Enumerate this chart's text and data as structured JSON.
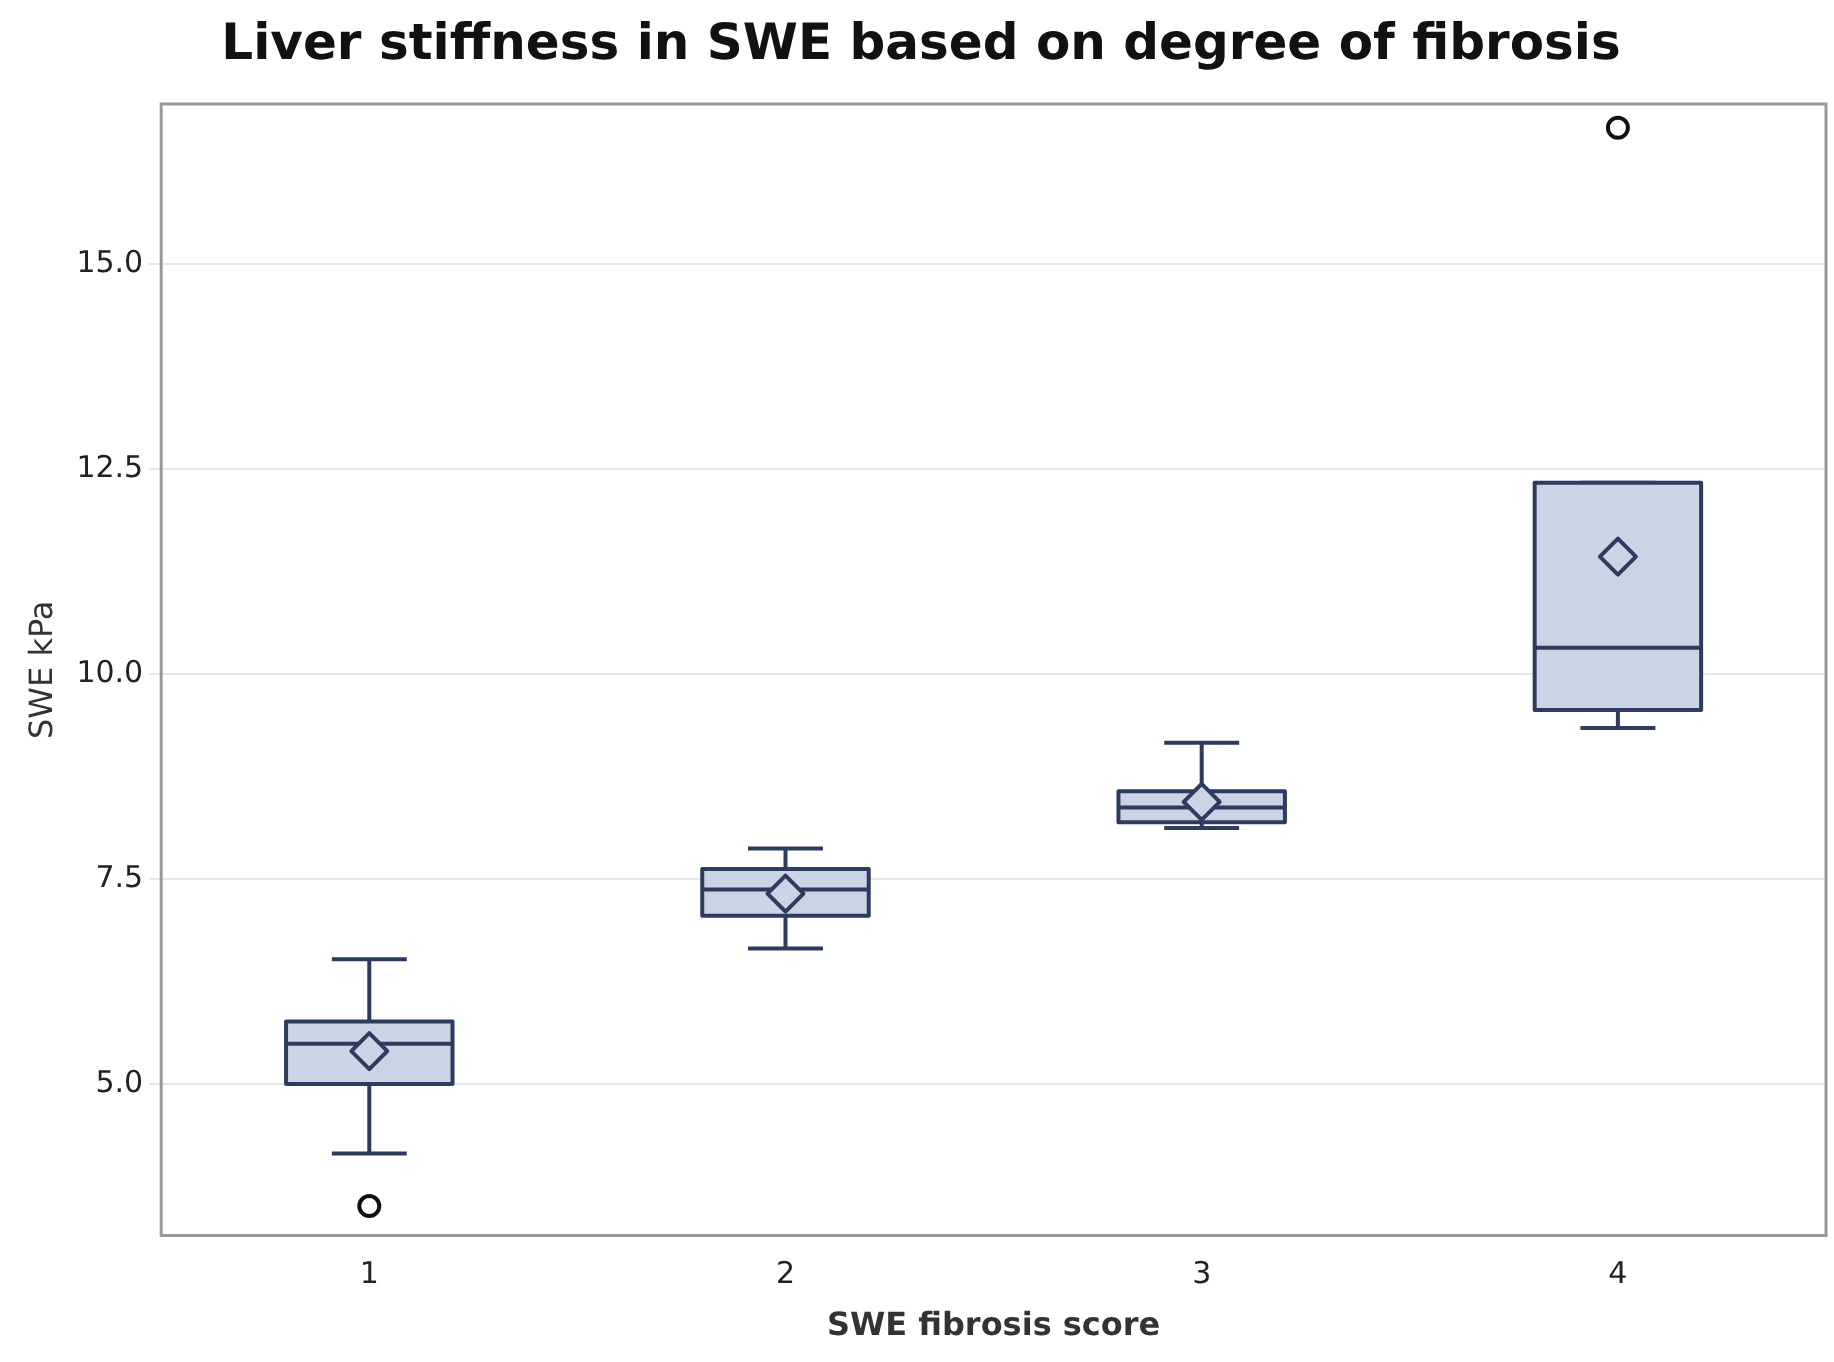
{
  "chart_data": {
    "type": "box",
    "title": "Liver stiffness in SWE based on degree of fibrosis",
    "xlabel": "SWE fibrosis score",
    "ylabel": "SWE kPa",
    "categories": [
      "1",
      "2",
      "3",
      "4"
    ],
    "series": [
      {
        "color": "#c9d4e5",
        "boxes": [
          {
            "low": 4.15,
            "q1": 5.0,
            "median": 5.49,
            "q3": 5.76,
            "high": 6.52,
            "mean": 5.4,
            "outliers": [
              3.51
            ]
          },
          {
            "low": 6.65,
            "q1": 7.05,
            "median": 7.37,
            "q3": 7.62,
            "high": 7.87,
            "mean": 7.32
          },
          {
            "low": 8.12,
            "q1": 8.19,
            "median": 8.37,
            "q3": 8.57,
            "high": 9.16,
            "mean": 8.44
          },
          {
            "low": 9.34,
            "q1": 9.56,
            "median": 10.32,
            "q3": 12.33,
            "high": 12.33,
            "mean": 11.43,
            "outliers": [
              16.66
            ]
          }
        ]
      }
    ],
    "ylim": [
      3.15,
      16.95
    ],
    "yticks": [
      {
        "value": 5,
        "label": "5.0"
      },
      {
        "value": 7.5,
        "label": "7.5"
      },
      {
        "value": 10,
        "label": "10.0"
      },
      {
        "value": 12.5,
        "label": "12.5"
      },
      {
        "value": 15,
        "label": "15.0"
      }
    ],
    "grid": "y"
  }
}
